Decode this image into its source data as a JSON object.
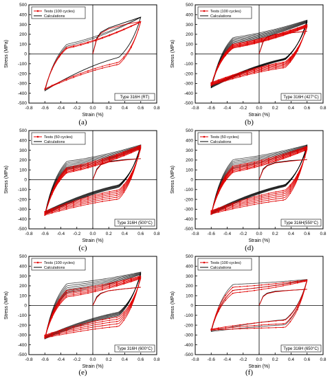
{
  "chart_data": [
    {
      "type": "line",
      "panel_label": "(a)",
      "annotation": "Type 316H (RT)",
      "xlabel": "Strain (%)",
      "ylabel": "Stress (MPa)",
      "xlim": [
        -0.8,
        0.8
      ],
      "ylim": [
        -500,
        500
      ],
      "xticks": [
        -0.8,
        -0.6,
        -0.4,
        -0.2,
        0.0,
        0.2,
        0.4,
        0.6,
        0.8
      ],
      "yticks": [
        -500,
        -400,
        -300,
        -200,
        -100,
        0,
        100,
        200,
        300,
        400,
        500
      ],
      "legend_position": "top-left",
      "series": [
        {
          "name": "Tests (100 cycles)",
          "color": "#e00000",
          "style": "line-with-markers",
          "loop": {
            "strain_amp": 0.6,
            "peak_max": 330,
            "peak_min": -360,
            "mid_up": -80,
            "mid_down": 40,
            "bands": 2,
            "band_spread": 0.05
          },
          "initial": [
            [
              0.0,
              0
            ],
            [
              0.05,
              150
            ],
            [
              0.1,
              210
            ],
            [
              0.2,
              255
            ],
            [
              0.4,
              300
            ],
            [
              0.6,
              330
            ]
          ]
        },
        {
          "name": "Calculations",
          "color": "#000000",
          "style": "line",
          "loop": {
            "strain_amp": 0.6,
            "peak_max": 375,
            "peak_min": -375,
            "mid_up": 0,
            "mid_down": 70,
            "bands": 2,
            "band_spread": 0.04
          },
          "initial": [
            [
              0.0,
              0
            ],
            [
              0.05,
              160
            ],
            [
              0.1,
              220
            ],
            [
              0.2,
              265
            ],
            [
              0.4,
              320
            ],
            [
              0.6,
              375
            ]
          ]
        }
      ]
    },
    {
      "type": "line",
      "panel_label": "(b)",
      "annotation": "Type 316H (427°C)",
      "xlabel": "Strain (%)",
      "ylabel": "Stress (MPa)",
      "xlim": [
        -0.8,
        0.8
      ],
      "ylim": [
        -500,
        500
      ],
      "xticks": [
        -0.8,
        -0.6,
        -0.4,
        -0.2,
        0.0,
        0.2,
        0.4,
        0.6,
        0.8
      ],
      "yticks": [
        -500,
        -400,
        -300,
        -200,
        -100,
        0,
        100,
        200,
        300,
        400,
        500
      ],
      "legend_position": "top-left",
      "series": [
        {
          "name": "Tests (100 cycles)",
          "color": "#e00000",
          "style": "line-with-markers",
          "loop": {
            "strain_amp": 0.6,
            "peak_max": 300,
            "peak_min": -320,
            "mid_up": -120,
            "mid_down": 80,
            "bands": 6,
            "band_spread": 0.35
          },
          "initial": [
            [
              0.0,
              0
            ],
            [
              0.05,
              120
            ],
            [
              0.1,
              170
            ],
            [
              0.2,
              200
            ],
            [
              0.4,
              215
            ],
            [
              0.6,
              230
            ]
          ]
        },
        {
          "name": "Calculations",
          "color": "#000000",
          "style": "line",
          "loop": {
            "strain_amp": 0.6,
            "peak_max": 345,
            "peak_min": -345,
            "mid_up": -30,
            "mid_down": 150,
            "bands": 7,
            "band_spread": 0.3
          },
          "initial": [
            [
              0.0,
              0
            ],
            [
              0.05,
              130
            ],
            [
              0.1,
              175
            ],
            [
              0.2,
              200
            ],
            [
              0.4,
              215
            ],
            [
              0.6,
              230
            ]
          ]
        }
      ]
    },
    {
      "type": "line",
      "panel_label": "(c)",
      "annotation": "Type 316H (500°C)",
      "xlabel": "Strain (%)",
      "ylabel": "Stress (MPa)",
      "xlim": [
        -0.8,
        0.8
      ],
      "ylim": [
        -500,
        500
      ],
      "xticks": [
        -0.8,
        -0.6,
        -0.4,
        -0.2,
        0.0,
        0.2,
        0.4,
        0.6,
        0.8
      ],
      "yticks": [
        -500,
        -400,
        -300,
        -200,
        -100,
        0,
        100,
        200,
        300,
        400,
        500
      ],
      "legend_position": "top-left",
      "series": [
        {
          "name": "Tests (50 cycles)",
          "color": "#e00000",
          "style": "line-with-markers",
          "loop": {
            "strain_amp": 0.6,
            "peak_max": 350,
            "peak_min": -360,
            "mid_up": -180,
            "mid_down": 100,
            "bands": 6,
            "band_spread": 0.4
          },
          "initial": [
            [
              0.0,
              0
            ],
            [
              0.05,
              100
            ],
            [
              0.1,
              150
            ],
            [
              0.2,
              180
            ],
            [
              0.4,
              200
            ],
            [
              0.6,
              215
            ]
          ]
        },
        {
          "name": "Calculations",
          "color": "#000000",
          "style": "line",
          "loop": {
            "strain_amp": 0.6,
            "peak_max": 355,
            "peak_min": -355,
            "mid_up": -50,
            "mid_down": 170,
            "bands": 7,
            "band_spread": 0.35
          },
          "initial": [
            [
              0.0,
              0
            ],
            [
              0.05,
              110
            ],
            [
              0.1,
              155
            ],
            [
              0.2,
              185
            ],
            [
              0.4,
              205
            ],
            [
              0.6,
              215
            ]
          ]
        }
      ]
    },
    {
      "type": "line",
      "panel_label": "(d)",
      "annotation": "Type 316H(550°C)",
      "xlabel": "Strain (%)",
      "ylabel": "Stress (MPa)",
      "xlim": [
        -0.8,
        0.8
      ],
      "ylim": [
        -500,
        500
      ],
      "xticks": [
        -0.8,
        -0.6,
        -0.4,
        -0.2,
        0.0,
        0.2,
        0.4,
        0.6,
        0.8
      ],
      "yticks": [
        -500,
        -400,
        -300,
        -200,
        -100,
        0,
        100,
        200,
        300,
        400,
        500
      ],
      "legend_position": "top-left",
      "series": [
        {
          "name": "Tests (50 cycles)",
          "color": "#e00000",
          "style": "line-with-markers",
          "loop": {
            "strain_amp": 0.6,
            "peak_max": 340,
            "peak_min": -350,
            "mid_up": -190,
            "mid_down": 120,
            "bands": 6,
            "band_spread": 0.4
          },
          "initial": [
            [
              0.0,
              0
            ],
            [
              0.05,
              100
            ],
            [
              0.1,
              140
            ],
            [
              0.2,
              170
            ],
            [
              0.4,
              190
            ],
            [
              0.6,
              205
            ]
          ]
        },
        {
          "name": "Calculations",
          "color": "#000000",
          "style": "line",
          "loop": {
            "strain_amp": 0.6,
            "peak_max": 355,
            "peak_min": -355,
            "mid_up": -40,
            "mid_down": 190,
            "bands": 7,
            "band_spread": 0.33
          },
          "initial": [
            [
              0.0,
              0
            ],
            [
              0.05,
              110
            ],
            [
              0.1,
              145
            ],
            [
              0.2,
              175
            ],
            [
              0.4,
              195
            ],
            [
              0.6,
              205
            ]
          ]
        }
      ]
    },
    {
      "type": "line",
      "panel_label": "(e)",
      "annotation": "Type 316H (600°C)",
      "xlabel": "Strain (%)",
      "ylabel": "Stress (MPa)",
      "xlim": [
        -0.8,
        0.8
      ],
      "ylim": [
        -500,
        500
      ],
      "xticks": [
        -0.8,
        -0.6,
        -0.4,
        -0.2,
        0.0,
        0.2,
        0.4,
        0.6,
        0.8
      ],
      "yticks": [
        -500,
        -400,
        -300,
        -200,
        -100,
        0,
        100,
        200,
        300,
        400,
        500
      ],
      "legend_position": "top-left",
      "series": [
        {
          "name": "Tests (100 cycles)",
          "color": "#e00000",
          "style": "line-with-markers",
          "loop": {
            "strain_amp": 0.6,
            "peak_max": 300,
            "peak_min": -330,
            "mid_up": -200,
            "mid_down": 140,
            "bands": 5,
            "band_spread": 0.35
          },
          "initial": [
            [
              0.0,
              0
            ],
            [
              0.05,
              80
            ],
            [
              0.1,
              120
            ],
            [
              0.2,
              150
            ],
            [
              0.4,
              170
            ],
            [
              0.6,
              185
            ]
          ]
        },
        {
          "name": "Calculations",
          "color": "#000000",
          "style": "line",
          "loop": {
            "strain_amp": 0.6,
            "peak_max": 340,
            "peak_min": -340,
            "mid_up": -80,
            "mid_down": 210,
            "bands": 6,
            "band_spread": 0.3
          },
          "initial": [
            [
              0.0,
              0
            ],
            [
              0.05,
              90
            ],
            [
              0.1,
              125
            ],
            [
              0.2,
              150
            ],
            [
              0.4,
              170
            ],
            [
              0.6,
              185
            ]
          ]
        }
      ]
    },
    {
      "type": "line",
      "panel_label": "(f)",
      "annotation": "Type 316H (650°C)",
      "xlabel": "Strain (%)",
      "ylabel": "Stress (MPa)",
      "xlim": [
        -0.8,
        0.8
      ],
      "ylim": [
        -500,
        500
      ],
      "xticks": [
        -0.8,
        -0.6,
        -0.4,
        -0.2,
        0.0,
        0.2,
        0.4,
        0.6,
        0.8
      ],
      "yticks": [
        -500,
        -400,
        -300,
        -200,
        -100,
        0,
        100,
        200,
        300,
        400,
        500
      ],
      "legend_position": "top-left",
      "series": [
        {
          "name": "Tests (100 cycles)",
          "color": "#e00000",
          "style": "line-with-markers",
          "loop": {
            "strain_amp": 0.6,
            "peak_max": 260,
            "peak_min": -250,
            "mid_up": -220,
            "mid_down": 180,
            "bands": 3,
            "band_spread": 0.15
          },
          "initial": [
            [
              0.0,
              0
            ],
            [
              0.05,
              90
            ],
            [
              0.1,
              120
            ],
            [
              0.2,
              140
            ],
            [
              0.4,
              155
            ],
            [
              0.6,
              165
            ]
          ]
        },
        {
          "name": "Calculations",
          "color": "#000000",
          "style": "line",
          "loop": {
            "strain_amp": 0.6,
            "peak_max": 265,
            "peak_min": -265,
            "mid_up": -190,
            "mid_down": 210,
            "bands": 2,
            "band_spread": 0.08
          },
          "initial": [
            [
              0.0,
              0
            ],
            [
              0.05,
              95
            ],
            [
              0.1,
              125
            ],
            [
              0.2,
              145
            ],
            [
              0.4,
              155
            ],
            [
              0.6,
              165
            ]
          ]
        }
      ]
    }
  ]
}
